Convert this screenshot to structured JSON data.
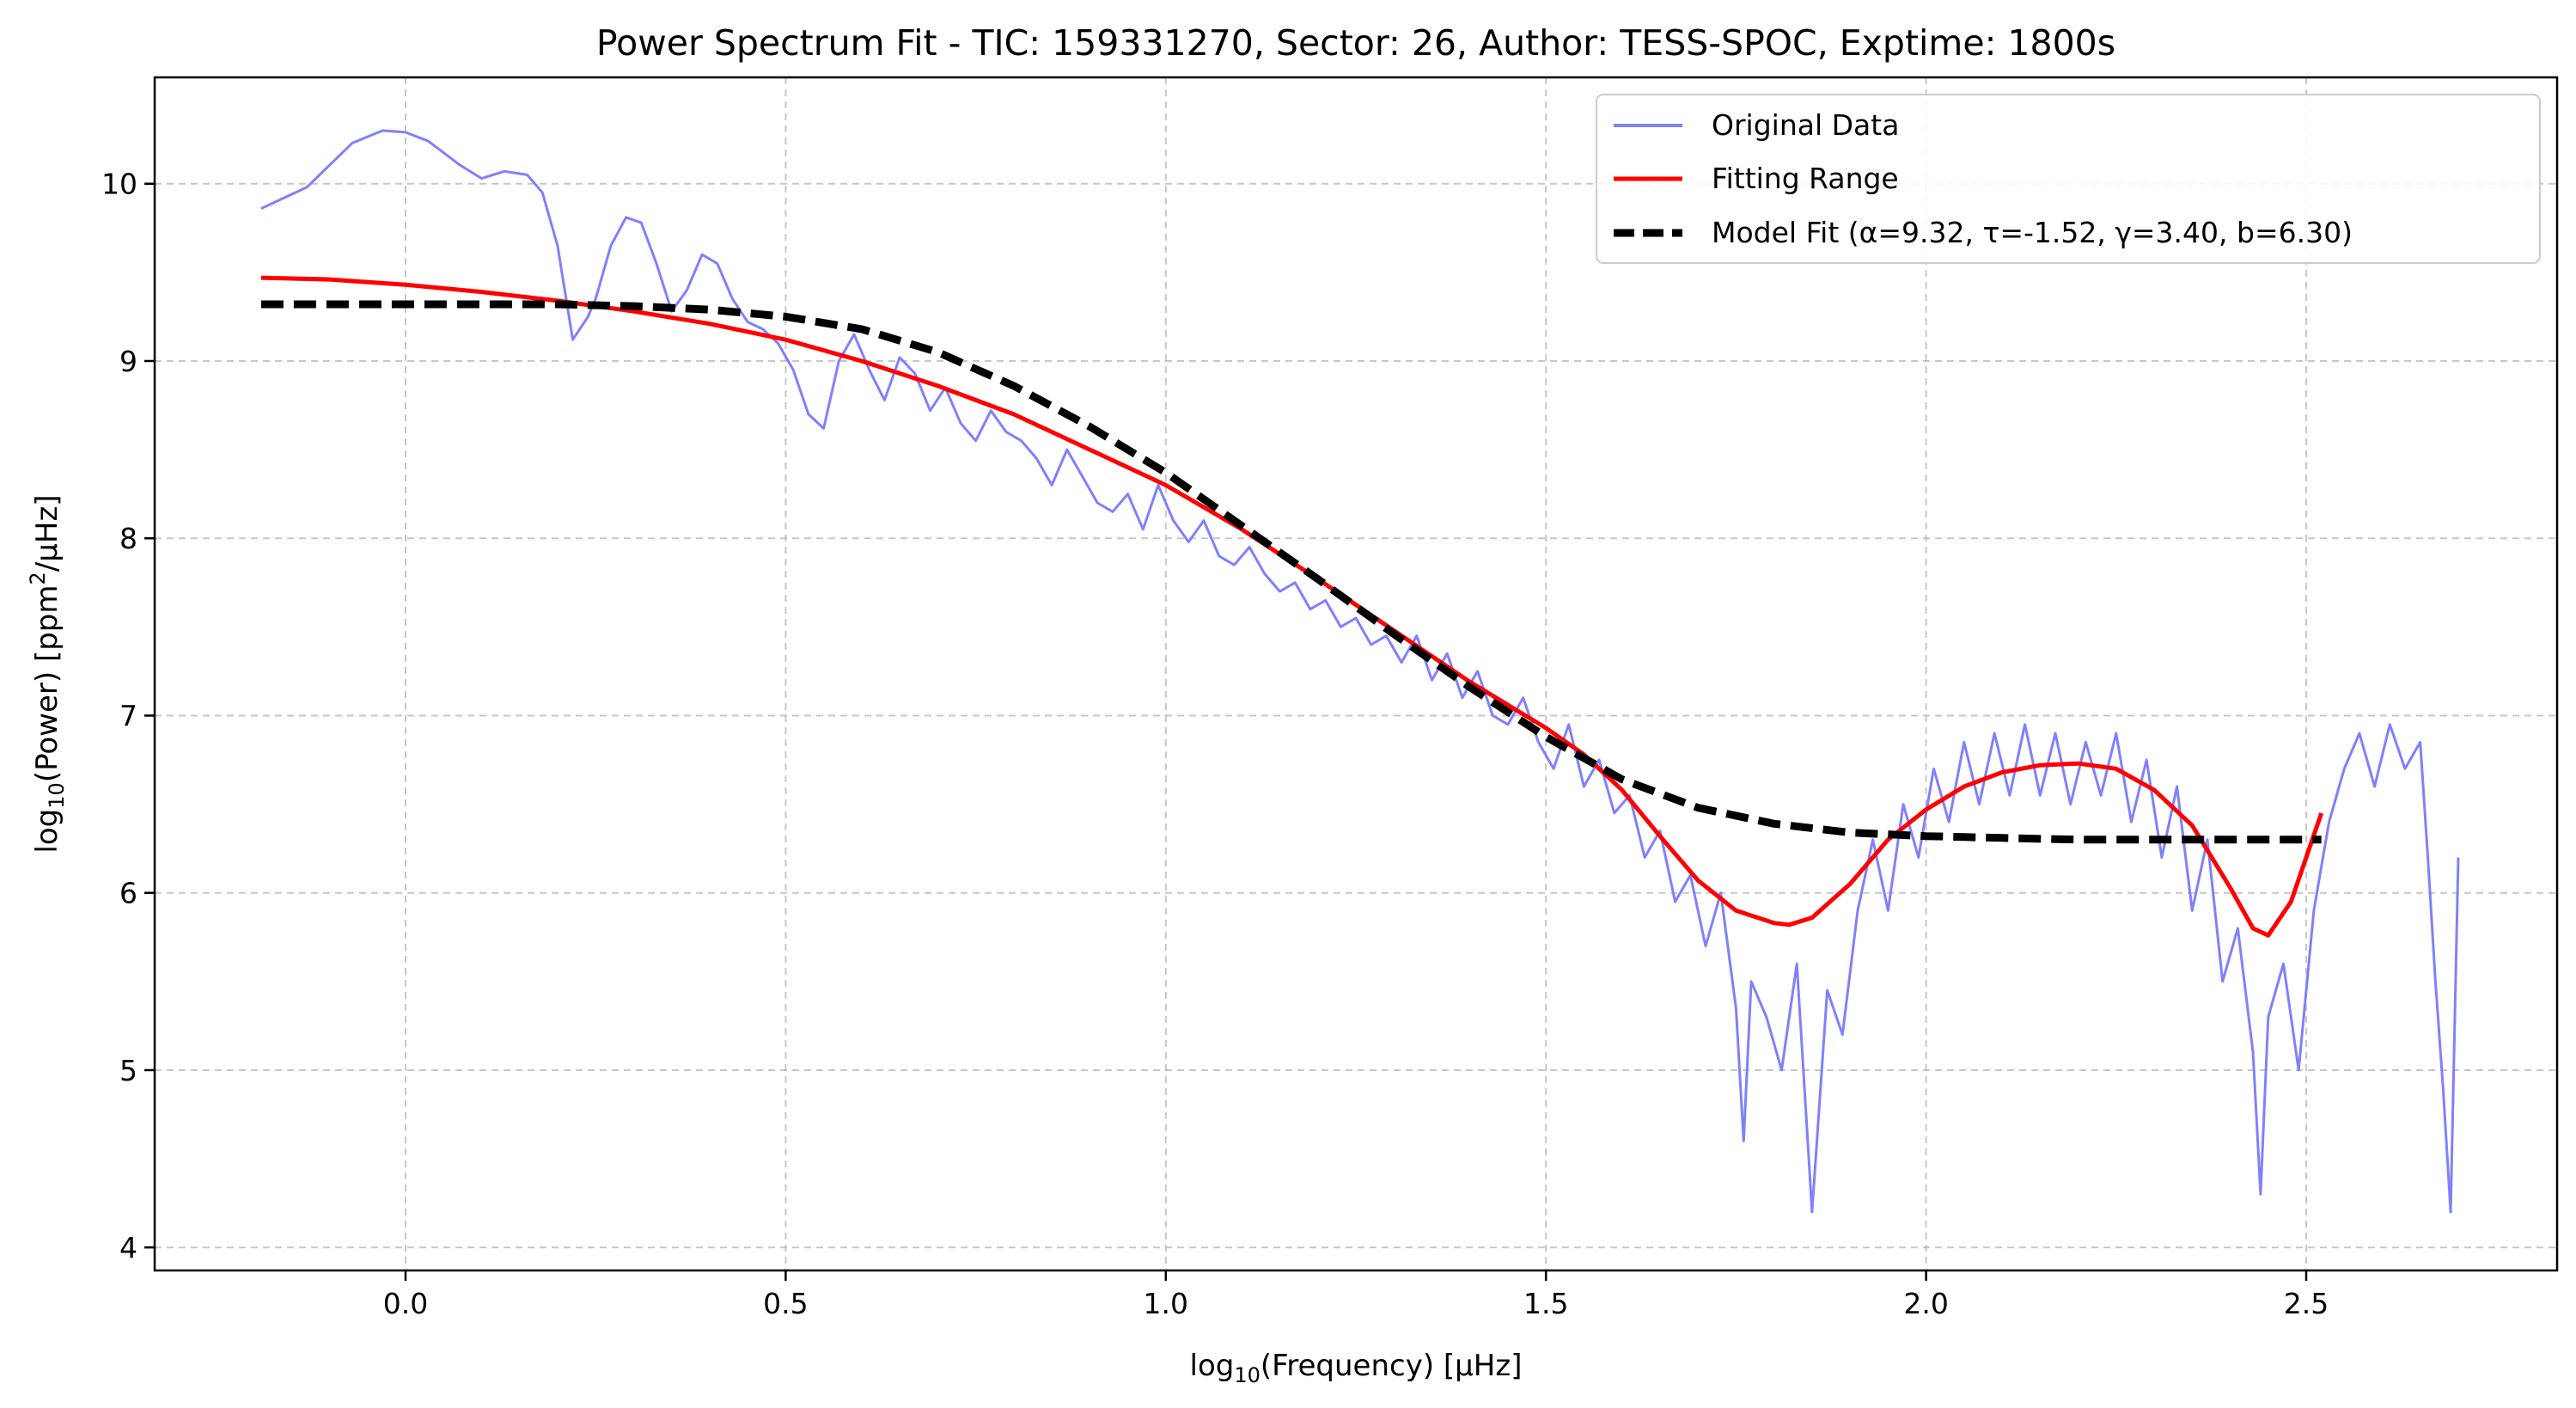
{
  "chart_data": {
    "type": "line",
    "title": "Power Spectrum Fit - TIC: 159331270, Sector: 26, Author: TESS-SPOC, Exptime: 1800s",
    "xlabel": {
      "pre": "log",
      "sub": "10",
      "post": "(Frequency) [µHz]"
    },
    "ylabel": {
      "pre": "log",
      "sub": "10",
      "mid": "(Power) [ppm",
      "sup": "2",
      "post": "/µHz]"
    },
    "xlim": [
      -0.33,
      2.83
    ],
    "ylim": [
      3.87,
      10.6
    ],
    "xticks": [
      0.0,
      0.5,
      1.0,
      1.5,
      2.0,
      2.5
    ],
    "xtick_labels": [
      "0.0",
      "0.5",
      "1.0",
      "1.5",
      "2.0",
      "2.5"
    ],
    "yticks": [
      4,
      5,
      6,
      7,
      8,
      9,
      10
    ],
    "ytick_labels": [
      "4",
      "5",
      "6",
      "7",
      "8",
      "9",
      "10"
    ],
    "grid": true,
    "legend_position": "top-right",
    "series": [
      {
        "name": "Original Data",
        "color": "#8080ff",
        "style": "solid",
        "x": [
          -0.19,
          -0.13,
          -0.07,
          -0.03,
          0.0,
          0.03,
          0.07,
          0.1,
          0.13,
          0.16,
          0.18,
          0.2,
          0.22,
          0.24,
          0.25,
          0.27,
          0.29,
          0.31,
          0.33,
          0.35,
          0.37,
          0.39,
          0.41,
          0.43,
          0.45,
          0.47,
          0.49,
          0.51,
          0.53,
          0.55,
          0.57,
          0.59,
          0.61,
          0.63,
          0.65,
          0.67,
          0.69,
          0.71,
          0.73,
          0.75,
          0.77,
          0.79,
          0.81,
          0.83,
          0.85,
          0.87,
          0.89,
          0.91,
          0.93,
          0.95,
          0.97,
          0.99,
          1.01,
          1.03,
          1.05,
          1.07,
          1.09,
          1.11,
          1.13,
          1.15,
          1.17,
          1.19,
          1.21,
          1.23,
          1.25,
          1.27,
          1.29,
          1.31,
          1.33,
          1.35,
          1.37,
          1.39,
          1.41,
          1.43,
          1.45,
          1.47,
          1.49,
          1.51,
          1.53,
          1.55,
          1.57,
          1.59,
          1.61,
          1.63,
          1.65,
          1.67,
          1.69,
          1.71,
          1.73,
          1.75,
          1.76,
          1.77,
          1.79,
          1.81,
          1.83,
          1.85,
          1.87,
          1.89,
          1.91,
          1.93,
          1.95,
          1.97,
          1.99,
          2.01,
          2.03,
          2.05,
          2.07,
          2.09,
          2.11,
          2.13,
          2.15,
          2.17,
          2.19,
          2.21,
          2.23,
          2.25,
          2.27,
          2.29,
          2.31,
          2.33,
          2.35,
          2.37,
          2.39,
          2.41,
          2.43,
          2.44,
          2.45,
          2.47,
          2.49,
          2.51,
          2.53,
          2.55,
          2.57,
          2.59,
          2.61,
          2.63,
          2.65,
          2.66,
          2.67,
          2.68,
          2.69,
          2.7
        ],
        "y": [
          9.86,
          9.98,
          10.23,
          10.3,
          10.29,
          10.24,
          10.11,
          10.03,
          10.07,
          10.05,
          9.95,
          9.65,
          9.12,
          9.25,
          9.35,
          9.65,
          9.81,
          9.78,
          9.55,
          9.28,
          9.4,
          9.6,
          9.55,
          9.35,
          9.22,
          9.18,
          9.1,
          8.95,
          8.7,
          8.62,
          9.0,
          9.15,
          8.95,
          8.78,
          9.02,
          8.93,
          8.72,
          8.85,
          8.65,
          8.55,
          8.72,
          8.6,
          8.55,
          8.45,
          8.3,
          8.5,
          8.35,
          8.2,
          8.15,
          8.25,
          8.05,
          8.3,
          8.1,
          7.98,
          8.1,
          7.9,
          7.85,
          7.95,
          7.8,
          7.7,
          7.75,
          7.6,
          7.65,
          7.5,
          7.55,
          7.4,
          7.45,
          7.3,
          7.45,
          7.2,
          7.35,
          7.1,
          7.25,
          7.0,
          6.95,
          7.1,
          6.85,
          6.7,
          6.95,
          6.6,
          6.75,
          6.45,
          6.55,
          6.2,
          6.35,
          5.95,
          6.1,
          5.7,
          6.0,
          5.35,
          4.6,
          5.5,
          5.3,
          5.0,
          5.6,
          4.2,
          5.45,
          5.2,
          5.9,
          6.3,
          5.9,
          6.5,
          6.2,
          6.7,
          6.4,
          6.85,
          6.5,
          6.9,
          6.55,
          6.95,
          6.55,
          6.9,
          6.5,
          6.85,
          6.55,
          6.9,
          6.4,
          6.75,
          6.2,
          6.6,
          5.9,
          6.3,
          5.5,
          5.8,
          5.1,
          4.3,
          5.3,
          5.6,
          5.0,
          5.9,
          6.4,
          6.7,
          6.9,
          6.6,
          6.95,
          6.7,
          6.85,
          6.2,
          5.5,
          4.9,
          4.2,
          6.2
        ]
      },
      {
        "name": "Fitting Range",
        "color": "#ff0000",
        "style": "solid",
        "x": [
          -0.19,
          -0.1,
          0.0,
          0.1,
          0.2,
          0.3,
          0.4,
          0.5,
          0.6,
          0.7,
          0.8,
          0.9,
          1.0,
          1.1,
          1.2,
          1.3,
          1.4,
          1.5,
          1.55,
          1.6,
          1.65,
          1.7,
          1.75,
          1.8,
          1.82,
          1.85,
          1.9,
          1.95,
          2.0,
          2.05,
          2.1,
          2.15,
          2.2,
          2.25,
          2.3,
          2.35,
          2.4,
          2.43,
          2.45,
          2.48,
          2.5,
          2.52
        ],
        "y": [
          9.47,
          9.46,
          9.43,
          9.39,
          9.34,
          9.28,
          9.21,
          9.12,
          9.0,
          8.86,
          8.7,
          8.5,
          8.3,
          8.05,
          7.77,
          7.48,
          7.19,
          6.93,
          6.78,
          6.58,
          6.32,
          6.07,
          5.9,
          5.83,
          5.82,
          5.86,
          6.05,
          6.3,
          6.47,
          6.6,
          6.68,
          6.72,
          6.73,
          6.7,
          6.58,
          6.38,
          6.03,
          5.8,
          5.76,
          5.95,
          6.2,
          6.45
        ]
      },
      {
        "name": "Model Fit (α=9.32, τ=-1.52, γ=3.40, b=6.30)",
        "color": "#000000",
        "style": "dashed",
        "x": [
          -0.19,
          -0.1,
          0.0,
          0.1,
          0.2,
          0.3,
          0.4,
          0.5,
          0.6,
          0.7,
          0.8,
          0.9,
          1.0,
          1.1,
          1.2,
          1.3,
          1.4,
          1.5,
          1.6,
          1.7,
          1.8,
          1.9,
          2.0,
          2.1,
          2.2,
          2.3,
          2.4,
          2.52
        ],
        "y": [
          9.32,
          9.32,
          9.32,
          9.32,
          9.32,
          9.31,
          9.29,
          9.25,
          9.18,
          9.05,
          8.86,
          8.63,
          8.37,
          8.07,
          7.77,
          7.46,
          7.16,
          6.88,
          6.64,
          6.48,
          6.39,
          6.34,
          6.32,
          6.31,
          6.3,
          6.3,
          6.3,
          6.3
        ]
      }
    ]
  }
}
